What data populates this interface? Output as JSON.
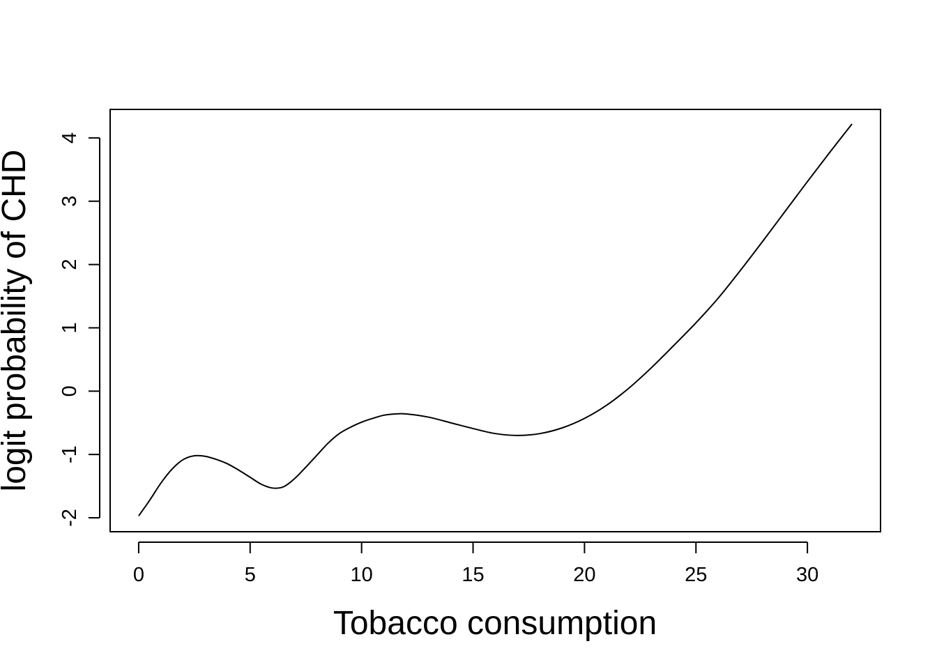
{
  "chart_data": {
    "type": "line",
    "title": "",
    "xlabel": "Tobacco consumption",
    "ylabel": "logit probability of CHD",
    "xlim": [
      -1.28,
      33.28
    ],
    "ylim": [
      -2.22,
      4.45
    ],
    "xticks": [
      0,
      5,
      10,
      15,
      20,
      25,
      30
    ],
    "yticks": [
      -2,
      -1,
      0,
      1,
      2,
      3,
      4
    ],
    "xtick_labels": [
      "0",
      "5",
      "10",
      "15",
      "20",
      "25",
      "30"
    ],
    "ytick_labels": [
      "-2",
      "-1",
      "0",
      "1",
      "2",
      "3",
      "4"
    ],
    "grid": false,
    "legend": "none",
    "line_color": "#000000",
    "series": [
      {
        "x": [
          0,
          0.5,
          1,
          1.5,
          2,
          2.5,
          3,
          3.5,
          4,
          4.5,
          5,
          5.5,
          6,
          6.5,
          7,
          7.5,
          8,
          8.5,
          9,
          9.5,
          10,
          10.5,
          11,
          11.5,
          12,
          13,
          14,
          15,
          16,
          17,
          18,
          19,
          20,
          21,
          22,
          23,
          24,
          25,
          26,
          27,
          28,
          29,
          30,
          31,
          32
        ],
        "y": [
          -1.97,
          -1.72,
          -1.45,
          -1.23,
          -1.08,
          -1.02,
          -1.03,
          -1.08,
          -1.15,
          -1.25,
          -1.36,
          -1.47,
          -1.53,
          -1.51,
          -1.38,
          -1.2,
          -1.01,
          -0.82,
          -0.67,
          -0.57,
          -0.49,
          -0.43,
          -0.38,
          -0.36,
          -0.36,
          -0.41,
          -0.5,
          -0.59,
          -0.67,
          -0.7,
          -0.67,
          -0.58,
          -0.43,
          -0.22,
          0.05,
          0.37,
          0.72,
          1.08,
          1.47,
          1.91,
          2.37,
          2.84,
          3.31,
          3.77,
          4.22
        ]
      }
    ]
  }
}
